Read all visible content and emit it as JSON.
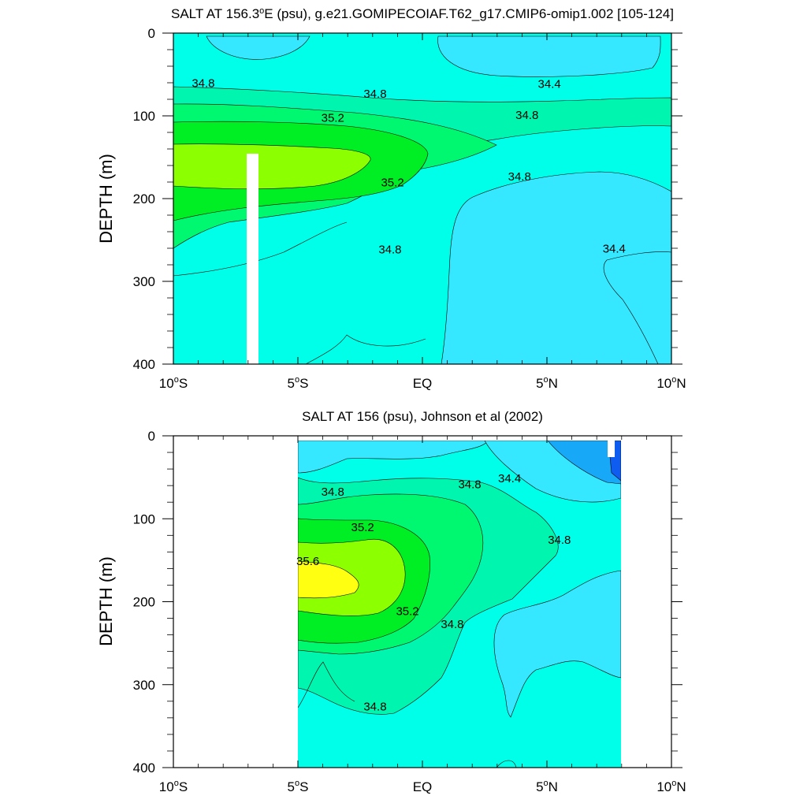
{
  "chart_data": [
    {
      "type": "contour",
      "title": "SALT AT 156.3°E (psu), g.e21.GOMIPECOIAF.T62_g17.CMIP6-omip1.002 [105-124]",
      "title_parts": {
        "a": "SALT AT 156.3",
        "sup": "o",
        "b": "E (psu), g.e21.GOMIPECOIAF.T62_g17.CMIP6-omip1.002 [105-124]"
      },
      "xlabel": "",
      "ylabel": "DEPTH (m)",
      "xlim": [
        -10,
        10
      ],
      "ylim": [
        0,
        400
      ],
      "y_reversed": true,
      "x_ticks": [
        {
          "value": -10,
          "num": "10",
          "sup": "o",
          "hemi": "S"
        },
        {
          "value": -5,
          "num": "5",
          "sup": "o",
          "hemi": "S"
        },
        {
          "value": 0,
          "num": "EQ",
          "sup": "",
          "hemi": ""
        },
        {
          "value": 5,
          "num": "5",
          "sup": "o",
          "hemi": "N"
        },
        {
          "value": 10,
          "num": "10",
          "sup": "o",
          "hemi": "N"
        }
      ],
      "y_ticks": [
        "0",
        "100",
        "200",
        "300",
        "400"
      ],
      "data_extent_x": [
        -10,
        10
      ],
      "missing_columns": [
        [
          -6.7,
          -6.2
        ]
      ],
      "contour_levels": [
        34.0,
        34.2,
        34.4,
        34.6,
        34.8,
        35.0,
        35.2,
        35.4,
        35.6
      ],
      "level_colors": {
        "<34.2": "#0f5cf0",
        "34.2-34.4": "#18a8f8",
        "34.4-34.6": "#36e8ff",
        "34.6-34.8": "#00ffe8",
        "34.8-35.0": "#00f5ae",
        "35.0-35.2": "#00f870",
        "35.2-35.4": "#00ee24",
        "35.4-35.6": "#8cff00",
        ">35.6": "#ffff12"
      },
      "contour_labels": [
        {
          "text": "34.8",
          "x": -8.8,
          "y": 65
        },
        {
          "text": "34.8",
          "x": -1.9,
          "y": 78
        },
        {
          "text": "34.4",
          "x": 5.1,
          "y": 66
        },
        {
          "text": "35.2",
          "x": -3.6,
          "y": 107
        },
        {
          "text": "34.8",
          "x": 4.2,
          "y": 104
        },
        {
          "text": "34.8",
          "x": 3.9,
          "y": 178
        },
        {
          "text": "35.2",
          "x": -1.2,
          "y": 185
        },
        {
          "text": "34.8",
          "x": -1.3,
          "y": 266
        },
        {
          "text": "34.4",
          "x": 7.7,
          "y": 265
        }
      ]
    },
    {
      "type": "contour",
      "title": "SALT AT 156 (psu), Johnson et al (2002)",
      "xlabel": "",
      "ylabel": "DEPTH (m)",
      "xlim": [
        -10,
        10
      ],
      "ylim": [
        0,
        400
      ],
      "y_reversed": true,
      "x_ticks": [
        {
          "value": -10,
          "num": "10",
          "sup": "o",
          "hemi": "S"
        },
        {
          "value": -5,
          "num": "5",
          "sup": "o",
          "hemi": "S"
        },
        {
          "value": 0,
          "num": "EQ",
          "sup": "",
          "hemi": ""
        },
        {
          "value": 5,
          "num": "5",
          "sup": "o",
          "hemi": "N"
        },
        {
          "value": 10,
          "num": "10",
          "sup": "o",
          "hemi": "N"
        }
      ],
      "y_ticks": [
        "0",
        "100",
        "200",
        "300",
        "400"
      ],
      "data_extent_x": [
        -5,
        8
      ],
      "contour_levels": [
        34.0,
        34.2,
        34.4,
        34.6,
        34.8,
        35.0,
        35.2,
        35.4,
        35.6
      ],
      "contour_labels": [
        {
          "text": "34.8",
          "x": -3.6,
          "y": 72
        },
        {
          "text": "34.8",
          "x": 1.9,
          "y": 63
        },
        {
          "text": "34.4",
          "x": 3.5,
          "y": 56
        },
        {
          "text": "35.2",
          "x": -2.4,
          "y": 115
        },
        {
          "text": "34.8",
          "x": 5.5,
          "y": 130
        },
        {
          "text": "35.6",
          "x": -4.6,
          "y": 156
        },
        {
          "text": "35.2",
          "x": -0.6,
          "y": 216
        },
        {
          "text": "34.8",
          "x": 1.2,
          "y": 232
        },
        {
          "text": "34.8",
          "x": -1.9,
          "y": 331
        }
      ]
    }
  ]
}
